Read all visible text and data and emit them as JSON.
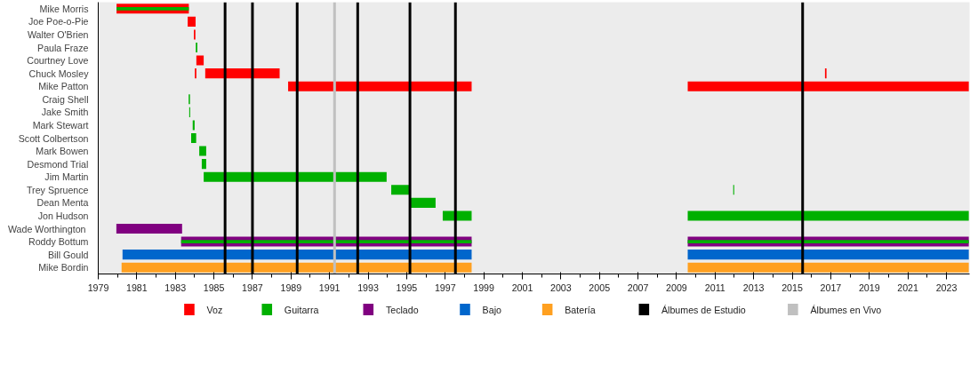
{
  "chart_data": {
    "type": "bar",
    "orientation": "horizontal",
    "legend": "bottom",
    "grid": false,
    "categories": [
      "Mike Morris",
      "Joe Poe-o-Pie",
      "Walter O'Brien",
      "Paula Fraze",
      "Courtney Love",
      "Chuck Mosley",
      "Mike Patton",
      "Craig Shell",
      "Jake Smith",
      "Mark Stewart",
      "Scott Colbertson",
      "Mark Bowen",
      "Desmond Trial",
      "Jim Martin",
      "Trey Spruence",
      "Dean Menta",
      "Jon Hudson",
      "Wade  Worthington",
      "Roddy Bottum",
      "Bill Gould",
      "Mike Bordin"
    ],
    "xlim": [
      1979,
      2024.2
    ],
    "xticks": [
      1979,
      1981,
      1983,
      1985,
      1987,
      1989,
      1991,
      1993,
      1995,
      1997,
      1999,
      2001,
      2003,
      2005,
      2007,
      2009,
      2011,
      2013,
      2015,
      2017,
      2019,
      2021,
      2023
    ],
    "series": [
      {
        "name": "Voz",
        "color": "#ff0000",
        "base": [
          1979.95,
          1983.64,
          1983.96,
          null,
          1984.09,
          1984.55,
          1988.85,
          null,
          null,
          null,
          null,
          null,
          null,
          null,
          null,
          null,
          null,
          null,
          null,
          null,
          null
        ],
        "values": [
          3.75,
          0.41,
          0.08,
          null,
          0.38,
          3.86,
          9.52,
          null,
          null,
          null,
          null,
          null,
          null,
          null,
          null,
          null,
          null,
          null,
          null,
          null,
          null
        ]
      },
      {
        "name": "Guitarra",
        "color": "#00b000",
        "base": [
          1979.95,
          null,
          null,
          1984.06,
          null,
          null,
          null,
          1983.69,
          1983.72,
          1983.9,
          1983.82,
          1984.24,
          1984.37,
          1984.47,
          1994.2,
          1995.17,
          1996.87,
          null,
          null,
          null,
          null
        ],
        "values": [
          3.75,
          null,
          null,
          0.08,
          null,
          null,
          null,
          0.07,
          0.05,
          0.1,
          0.26,
          0.36,
          0.23,
          9.49,
          0.92,
          1.33,
          1.5,
          null,
          null,
          null,
          null
        ]
      },
      {
        "name": "Teclado",
        "color": "#800080",
        "base": [
          null,
          null,
          null,
          null,
          null,
          null,
          null,
          null,
          null,
          null,
          null,
          null,
          null,
          null,
          null,
          null,
          null,
          1979.94,
          1983.3,
          null,
          null
        ],
        "values": [
          null,
          null,
          null,
          null,
          null,
          null,
          null,
          null,
          null,
          null,
          null,
          null,
          null,
          null,
          null,
          null,
          null,
          3.41,
          15.07,
          null,
          null
        ]
      },
      {
        "name": "Bajo",
        "color": "#0066cc",
        "base": [
          null,
          null,
          null,
          null,
          null,
          null,
          null,
          null,
          null,
          null,
          null,
          null,
          null,
          null,
          null,
          null,
          null,
          null,
          null,
          1980.26,
          null
        ],
        "values": [
          null,
          null,
          null,
          null,
          null,
          null,
          null,
          null,
          null,
          null,
          null,
          null,
          null,
          null,
          null,
          null,
          null,
          null,
          null,
          18.11,
          null
        ]
      },
      {
        "name": "Batería",
        "color": "#ffa020",
        "base": [
          null,
          null,
          null,
          null,
          null,
          null,
          null,
          null,
          null,
          null,
          null,
          null,
          null,
          null,
          null,
          null,
          null,
          null,
          null,
          null,
          1980.21
        ],
        "values": [
          null,
          null,
          null,
          null,
          null,
          null,
          null,
          null,
          null,
          null,
          null,
          null,
          null,
          null,
          null,
          null,
          null,
          null,
          null,
          null,
          18.16
        ]
      },
      {
        "color": "#ff0000",
        "base": [
          null,
          null,
          null,
          null,
          null,
          1984.01,
          2009.58,
          null,
          null,
          null,
          null,
          null,
          null,
          null,
          null,
          null,
          null,
          null,
          null,
          null,
          null
        ],
        "values": [
          null,
          null,
          null,
          null,
          null,
          0.08,
          14.58,
          null,
          null,
          null,
          null,
          null,
          null,
          null,
          null,
          null,
          null,
          null,
          null,
          null,
          null
        ]
      },
      {
        "color": "#800080",
        "base": [
          null,
          null,
          null,
          null,
          null,
          null,
          null,
          null,
          null,
          null,
          null,
          null,
          null,
          null,
          null,
          null,
          null,
          null,
          2009.58,
          null,
          null
        ],
        "values": [
          null,
          null,
          null,
          null,
          null,
          null,
          null,
          null,
          null,
          null,
          null,
          null,
          null,
          null,
          null,
          null,
          null,
          null,
          14.58,
          null,
          null
        ]
      },
      {
        "color": "#0066cc",
        "base": [
          null,
          null,
          null,
          null,
          null,
          null,
          null,
          null,
          null,
          null,
          null,
          null,
          null,
          null,
          null,
          null,
          null,
          null,
          null,
          2009.58,
          null
        ],
        "values": [
          null,
          null,
          null,
          null,
          null,
          null,
          null,
          null,
          null,
          null,
          null,
          null,
          null,
          null,
          null,
          null,
          null,
          null,
          null,
          14.58,
          null
        ]
      },
      {
        "color": "#ffa020",
        "base": [
          null,
          null,
          null,
          null,
          null,
          null,
          null,
          null,
          null,
          null,
          null,
          null,
          null,
          null,
          null,
          null,
          null,
          null,
          null,
          null,
          2009.58
        ],
        "values": [
          null,
          null,
          null,
          null,
          null,
          null,
          null,
          null,
          null,
          null,
          null,
          null,
          null,
          null,
          null,
          null,
          null,
          null,
          null,
          null,
          14.58
        ]
      },
      {
        "color": "#00b000",
        "base": [
          null,
          null,
          null,
          null,
          null,
          null,
          null,
          null,
          null,
          null,
          null,
          null,
          null,
          null,
          2011.94,
          null,
          2009.58,
          null,
          1983.3,
          null,
          null
        ],
        "values": [
          null,
          null,
          null,
          null,
          null,
          null,
          null,
          null,
          null,
          null,
          null,
          null,
          null,
          null,
          0.05,
          null,
          14.58,
          null,
          15.07,
          null,
          null
        ]
      },
      {
        "color": "#00b000",
        "base": [
          null,
          null,
          null,
          null,
          null,
          null,
          null,
          null,
          null,
          null,
          null,
          null,
          null,
          null,
          null,
          null,
          null,
          null,
          2009.58,
          null,
          null
        ],
        "values": [
          null,
          null,
          null,
          null,
          null,
          null,
          null,
          null,
          null,
          null,
          null,
          null,
          null,
          null,
          null,
          null,
          null,
          null,
          14.58,
          null,
          null
        ]
      },
      {
        "color": "#ff0000",
        "base": [
          null,
          null,
          null,
          null,
          null,
          2016.7,
          null,
          null,
          null,
          null,
          null,
          null,
          null,
          null,
          null,
          null,
          null,
          null,
          null,
          null,
          null
        ],
        "values": [
          null,
          null,
          null,
          null,
          null,
          0.08,
          null,
          null,
          null,
          null,
          null,
          null,
          null,
          null,
          null,
          null,
          null,
          null,
          null,
          null,
          null
        ]
      }
    ],
    "ref_lines": [
      {
        "axis": "x",
        "value": 1985.58,
        "label": "Álbumes de Estudio",
        "color": "#000000"
      },
      {
        "axis": "x",
        "value": 1987.0,
        "label": null,
        "color": "#000000"
      },
      {
        "axis": "x",
        "value": 1989.32,
        "label": null,
        "color": "#000000"
      },
      {
        "axis": "x",
        "value": 1991.26,
        "label": "Álbumes en Vivo",
        "color": "#c0c0c0"
      },
      {
        "axis": "x",
        "value": 1992.46,
        "label": null,
        "color": "#000000"
      },
      {
        "axis": "x",
        "value": 1995.17,
        "label": null,
        "color": "#000000"
      },
      {
        "axis": "x",
        "value": 1997.53,
        "label": null,
        "color": "#000000"
      },
      {
        "axis": "x",
        "value": 2015.54,
        "label": null,
        "color": "#000000"
      }
    ]
  }
}
